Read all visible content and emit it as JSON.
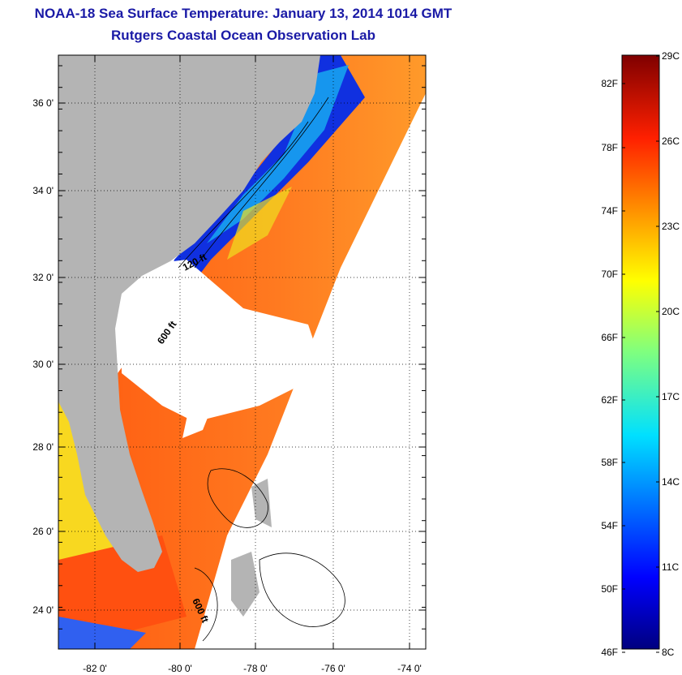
{
  "title_line1": "NOAA-18 Sea Surface Temperature:  January 13, 2014 1014 GMT",
  "title_line2": "Rutgers Coastal Ocean Observation Lab",
  "map": {
    "lat_ticks": [
      "36 0'",
      "34 0'",
      "32 0'",
      "30 0'",
      "28 0'",
      "26 0'",
      "24 0'"
    ],
    "lon_ticks": [
      "-82 0'",
      "-80 0'",
      "-78 0'",
      "-76 0'",
      "-74 0'"
    ],
    "contour_labels": [
      "120 ft",
      "600 ft",
      "600 ft"
    ],
    "colors": {
      "land": "#b4b4b4",
      "cloud": "#ffffff",
      "ocean_warm": "#f06a10",
      "ocean_cold": "#0a2ad0"
    }
  },
  "colorbar": {
    "fahrenheit": [
      "82F",
      "78F",
      "74F",
      "70F",
      "66F",
      "62F",
      "58F",
      "54F",
      "50F",
      "46F"
    ],
    "celsius": [
      "29C",
      "26C",
      "23C",
      "20C",
      "17C",
      "14C",
      "11C",
      "8C"
    ],
    "colormap": "jet"
  }
}
